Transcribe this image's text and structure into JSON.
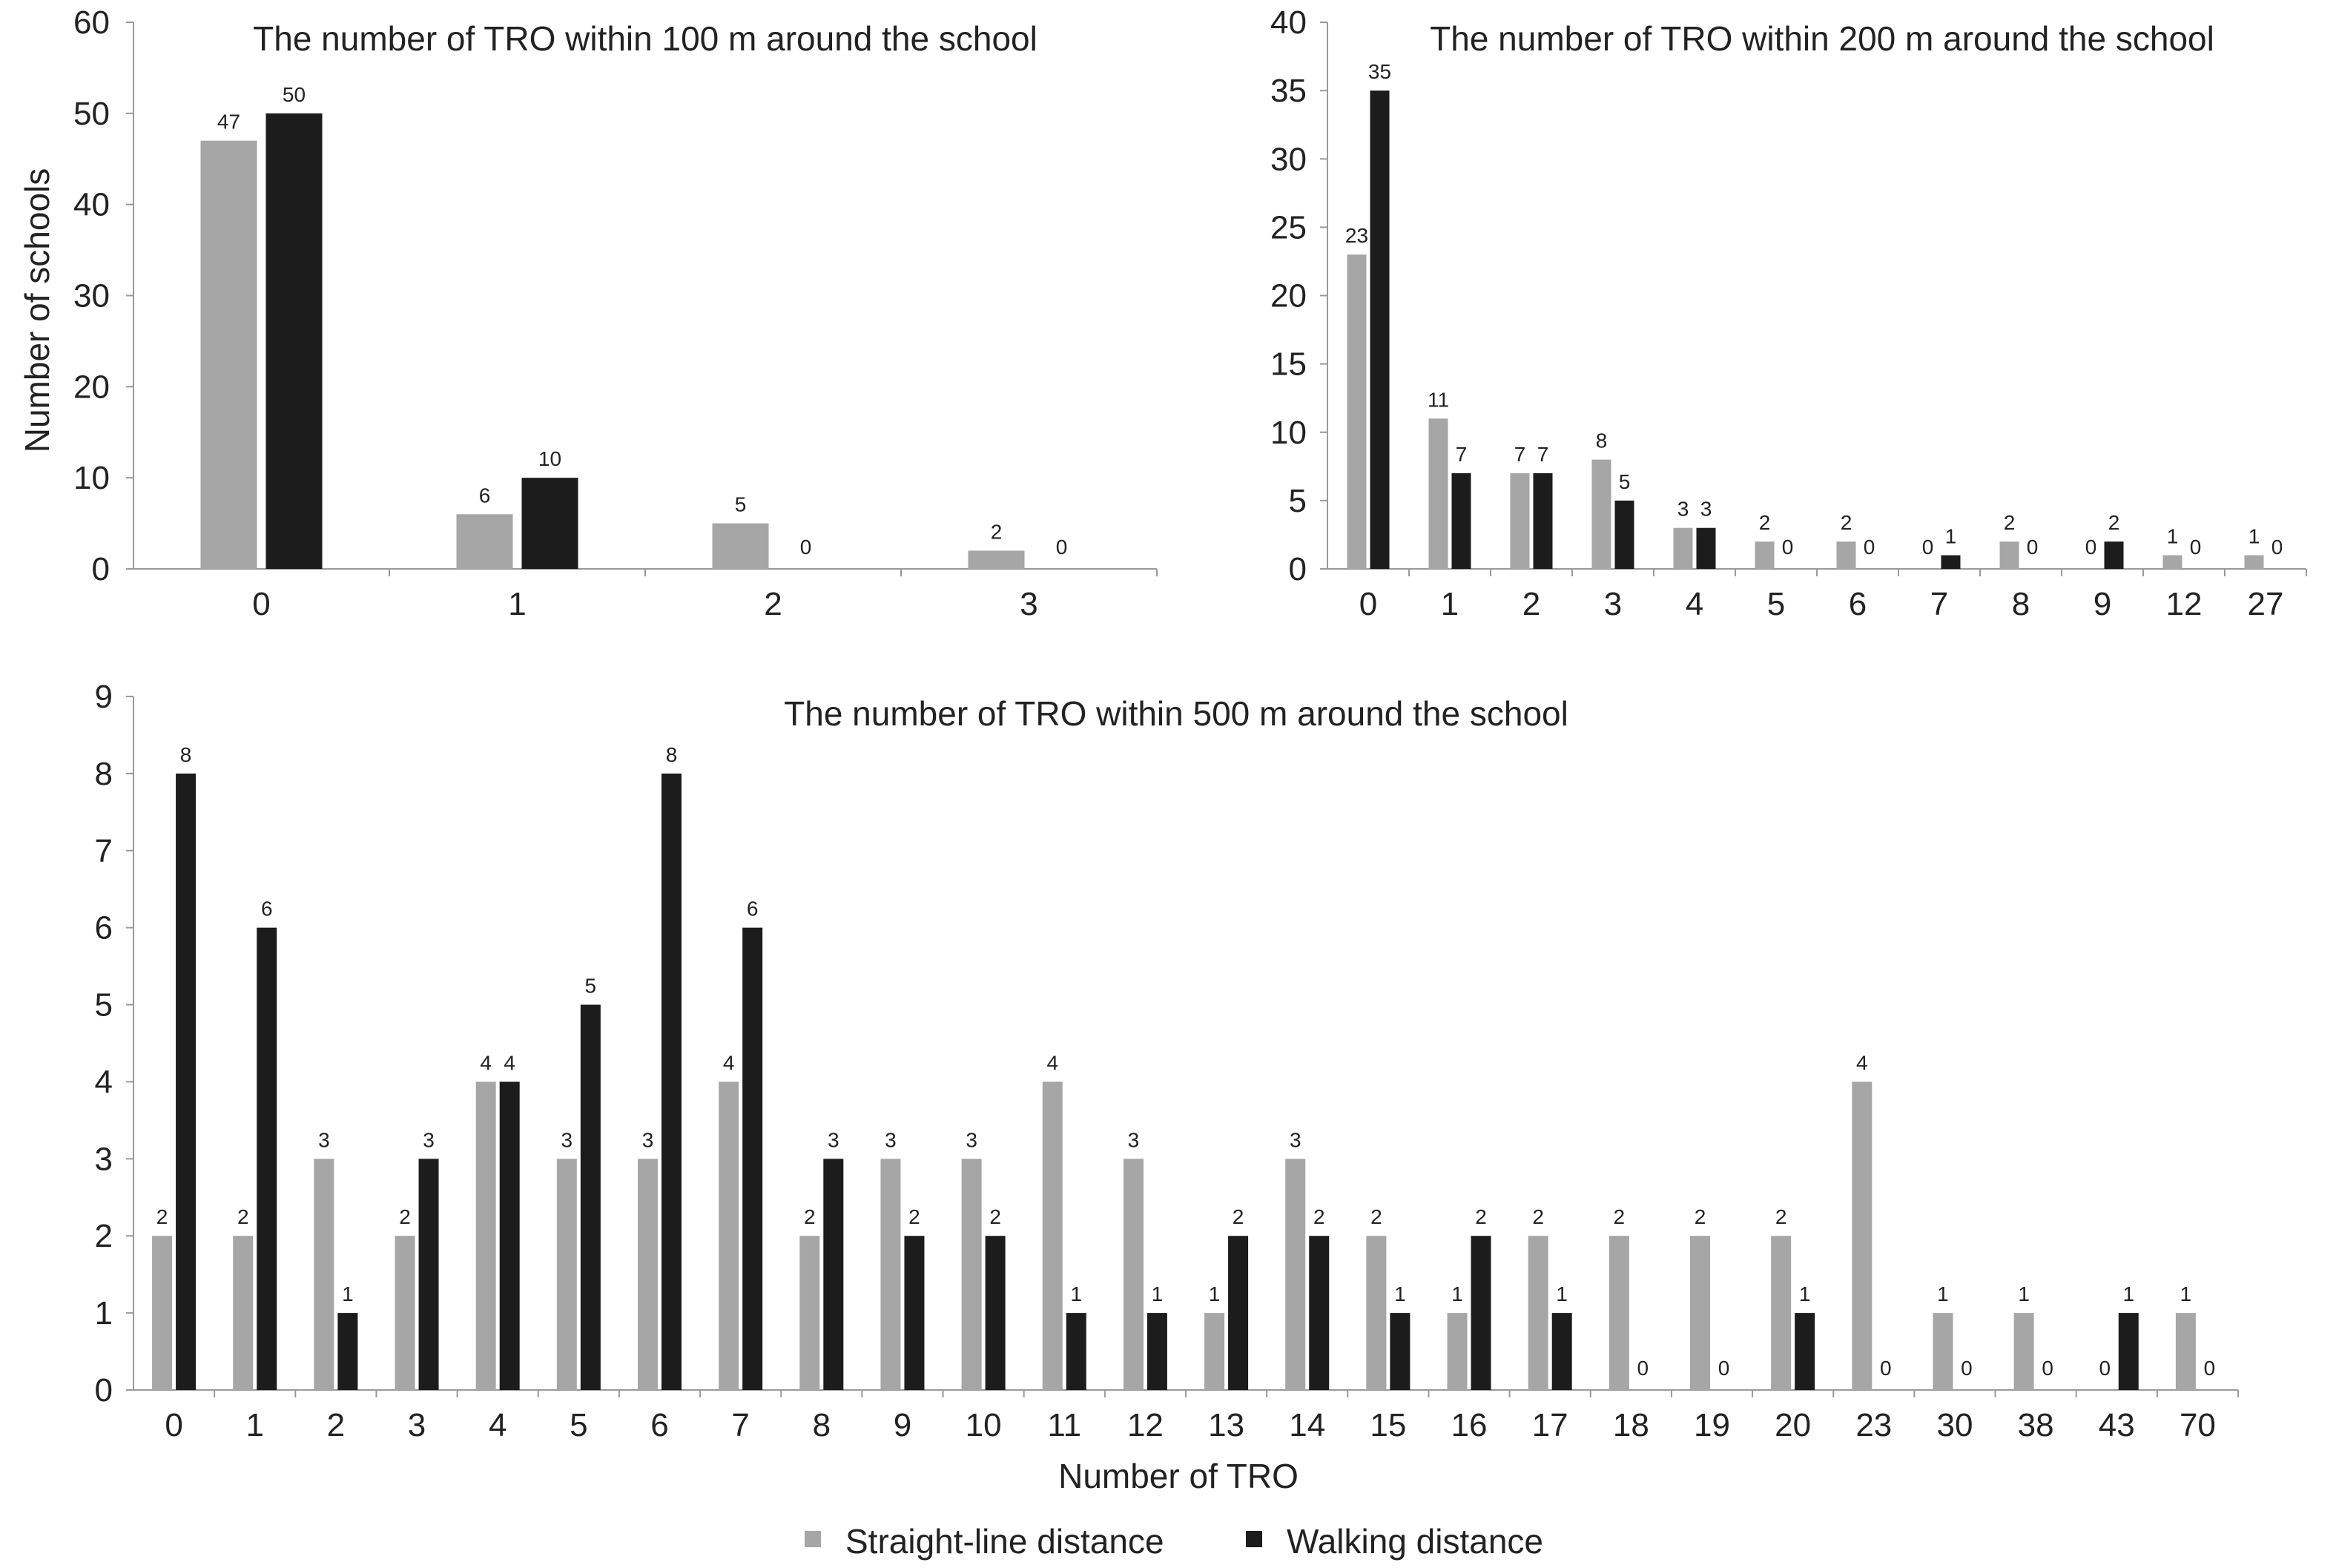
{
  "chart_data": [
    {
      "type": "bar",
      "title": "The number of TRO within 100 m around the school",
      "xlabel": "",
      "ylabel": "Number of schools",
      "ylim": [
        0,
        60
      ],
      "yticks": [
        0,
        10,
        20,
        30,
        40,
        50,
        60
      ],
      "categories": [
        "0",
        "1",
        "2",
        "3"
      ],
      "series": [
        {
          "name": "Straight-line distance",
          "values": [
            47,
            6,
            5,
            2
          ]
        },
        {
          "name": "Walking distance",
          "values": [
            50,
            10,
            0,
            0
          ]
        }
      ]
    },
    {
      "type": "bar",
      "title": "The number of TRO within 200 m around the school",
      "xlabel": "",
      "ylabel": "",
      "ylim": [
        0,
        40
      ],
      "yticks": [
        0,
        5,
        10,
        15,
        20,
        25,
        30,
        35,
        40
      ],
      "categories": [
        "0",
        "1",
        "2",
        "3",
        "4",
        "5",
        "6",
        "7",
        "8",
        "9",
        "12",
        "27"
      ],
      "series": [
        {
          "name": "Straight-line distance",
          "values": [
            23,
            11,
            7,
            8,
            3,
            2,
            2,
            0,
            2,
            0,
            1,
            1
          ]
        },
        {
          "name": "Walking distance",
          "values": [
            35,
            7,
            7,
            5,
            3,
            0,
            0,
            1,
            0,
            2,
            0,
            0
          ]
        }
      ]
    },
    {
      "type": "bar",
      "title": "The number of TRO within 500 m around the school",
      "xlabel": "Number of TRO",
      "ylabel": "",
      "ylim": [
        0,
        9
      ],
      "yticks": [
        0,
        1,
        2,
        3,
        4,
        5,
        6,
        7,
        8,
        9
      ],
      "categories": [
        "0",
        "1",
        "2",
        "3",
        "4",
        "5",
        "6",
        "7",
        "8",
        "9",
        "10",
        "11",
        "12",
        "13",
        "14",
        "15",
        "16",
        "17",
        "18",
        "19",
        "20",
        "23",
        "30",
        "38",
        "43",
        "70"
      ],
      "series": [
        {
          "name": "Straight-line distance",
          "values": [
            2,
            2,
            3,
            2,
            4,
            3,
            3,
            4,
            2,
            3,
            3,
            4,
            3,
            1,
            3,
            2,
            1,
            2,
            2,
            2,
            2,
            4,
            1,
            1,
            0,
            1
          ]
        },
        {
          "name": "Walking distance",
          "values": [
            8,
            6,
            1,
            3,
            4,
            5,
            8,
            6,
            3,
            2,
            2,
            1,
            1,
            2,
            2,
            1,
            2,
            1,
            0,
            0,
            1,
            0,
            0,
            0,
            1,
            0
          ]
        }
      ]
    }
  ],
  "legend": {
    "placement": "bottom-center",
    "items": [
      {
        "label": "Straight-line distance",
        "color": "#a6a6a6"
      },
      {
        "label": "Walking distance",
        "color": "#1c1c1c"
      }
    ]
  },
  "colors": {
    "straight": "#a6a6a6",
    "walking": "#1c1c1c"
  }
}
